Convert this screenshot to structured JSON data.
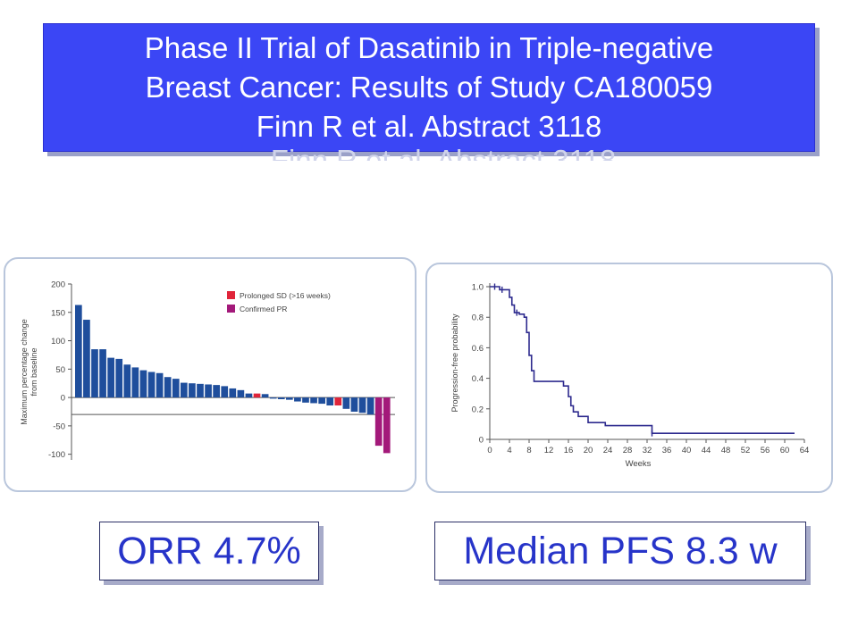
{
  "slide": {
    "title_lines": [
      "Phase II Trial of Dasatinib in Triple-negative",
      "Breast Cancer: Results of Study CA180059",
      "Finn R et al. Abstract 3118"
    ],
    "orr_label": "ORR 4.7%",
    "pfs_label": "Median PFS 8.3 w"
  },
  "colors": {
    "title_bg": "#3b46f5",
    "bar_blue": "#1f4e9c",
    "bar_red": "#e0253a",
    "bar_magenta": "#a3197a",
    "km_line": "#2d2a8e",
    "metric_text": "#2734c9"
  },
  "chart_data": [
    {
      "type": "bar",
      "title": "",
      "ylabel": "Maximum percentage change from baseline",
      "ylim": [
        -110,
        200
      ],
      "yticks": [
        200,
        150,
        100,
        50,
        0,
        -50,
        -100
      ],
      "reference_line": -30,
      "legend": [
        {
          "label": "Prolonged SD (>16 weeks)",
          "color": "#e0253a"
        },
        {
          "label": "Confirmed PR",
          "color": "#a3197a"
        }
      ],
      "legend_position": "top-right",
      "bars": [
        {
          "value": 163,
          "group": "none"
        },
        {
          "value": 137,
          "group": "none"
        },
        {
          "value": 85,
          "group": "none"
        },
        {
          "value": 85,
          "group": "none"
        },
        {
          "value": 70,
          "group": "none"
        },
        {
          "value": 68,
          "group": "none"
        },
        {
          "value": 58,
          "group": "none"
        },
        {
          "value": 53,
          "group": "none"
        },
        {
          "value": 48,
          "group": "none"
        },
        {
          "value": 45,
          "group": "none"
        },
        {
          "value": 43,
          "group": "none"
        },
        {
          "value": 36,
          "group": "none"
        },
        {
          "value": 33,
          "group": "none"
        },
        {
          "value": 26,
          "group": "none"
        },
        {
          "value": 25,
          "group": "none"
        },
        {
          "value": 24,
          "group": "none"
        },
        {
          "value": 23,
          "group": "none"
        },
        {
          "value": 22,
          "group": "none"
        },
        {
          "value": 20,
          "group": "none"
        },
        {
          "value": 16,
          "group": "none"
        },
        {
          "value": 13,
          "group": "none"
        },
        {
          "value": 7,
          "group": "none"
        },
        {
          "value": 7,
          "group": "prolonged_sd"
        },
        {
          "value": 6,
          "group": "none"
        },
        {
          "value": -2,
          "group": "none"
        },
        {
          "value": -3,
          "group": "none"
        },
        {
          "value": -4,
          "group": "none"
        },
        {
          "value": -7,
          "group": "none"
        },
        {
          "value": -9,
          "group": "none"
        },
        {
          "value": -10,
          "group": "none"
        },
        {
          "value": -11,
          "group": "none"
        },
        {
          "value": -14,
          "group": "none"
        },
        {
          "value": -14,
          "group": "prolonged_sd"
        },
        {
          "value": -20,
          "group": "none"
        },
        {
          "value": -25,
          "group": "none"
        },
        {
          "value": -27,
          "group": "none"
        },
        {
          "value": -30,
          "group": "none"
        },
        {
          "value": -85,
          "group": "confirmed_pr"
        },
        {
          "value": -98,
          "group": "confirmed_pr"
        }
      ]
    },
    {
      "type": "line",
      "title": "",
      "xlabel": "Weeks",
      "ylabel": "Progression-free probability",
      "xlim": [
        0,
        64
      ],
      "ylim": [
        0,
        1.0
      ],
      "xticks": [
        0,
        4,
        8,
        12,
        16,
        20,
        24,
        28,
        32,
        36,
        40,
        44,
        48,
        52,
        56,
        60,
        64
      ],
      "yticks": [
        "0",
        "0.2",
        "0.4",
        "0.6",
        "0.8",
        "1.0"
      ],
      "series": [
        {
          "step": true,
          "x": [
            0,
            2,
            3,
            4,
            4.5,
            5,
            6,
            7,
            7.5,
            8,
            8.5,
            9,
            15,
            16,
            16.5,
            17,
            18,
            20,
            23.5,
            33,
            62
          ],
          "y": [
            1.0,
            0.98,
            0.98,
            0.93,
            0.88,
            0.83,
            0.82,
            0.8,
            0.7,
            0.55,
            0.45,
            0.38,
            0.35,
            0.28,
            0.22,
            0.18,
            0.15,
            0.11,
            0.09,
            0.04,
            0.04
          ]
        }
      ],
      "censor_points": [
        {
          "x": 1,
          "y": 1.0
        },
        {
          "x": 2.5,
          "y": 0.98
        },
        {
          "x": 5.5,
          "y": 0.83
        },
        {
          "x": 33,
          "y": 0.04
        }
      ]
    }
  ]
}
